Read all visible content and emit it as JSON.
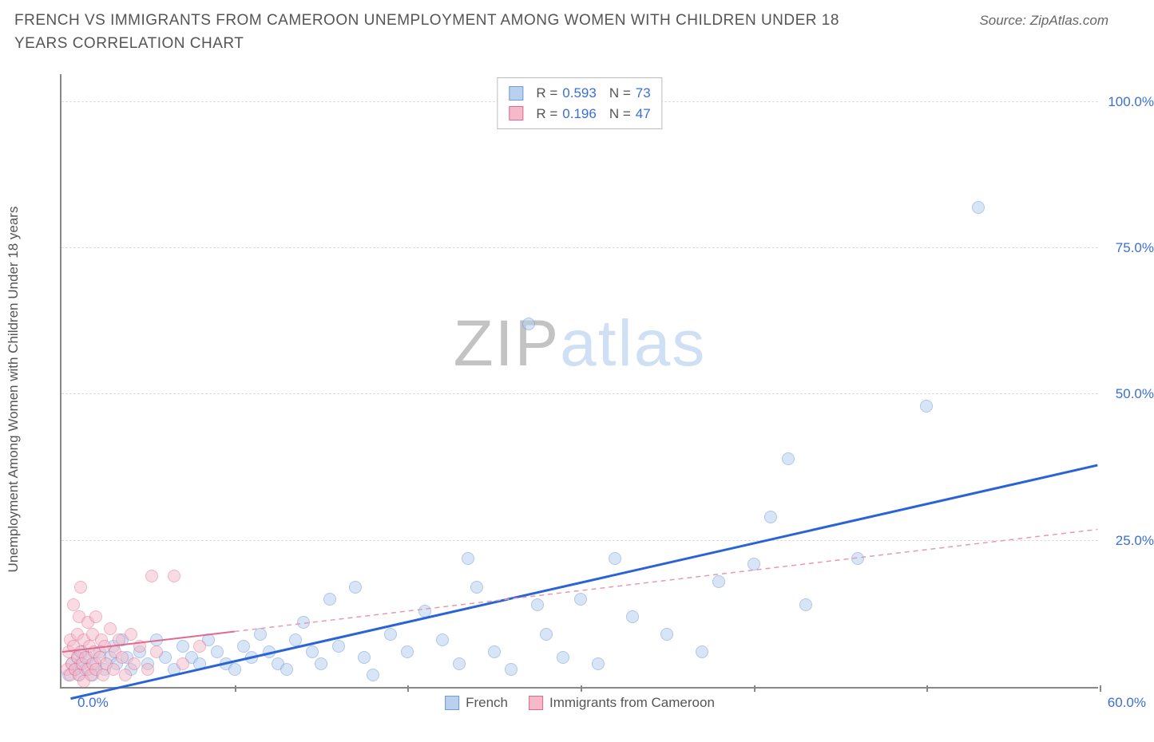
{
  "title": "FRENCH VS IMMIGRANTS FROM CAMEROON UNEMPLOYMENT AMONG WOMEN WITH CHILDREN UNDER 18 YEARS CORRELATION CHART",
  "source": "Source: ZipAtlas.com",
  "y_axis_label": "Unemployment Among Women with Children Under 18 years",
  "watermark": {
    "a": "ZIP",
    "b": "atlas"
  },
  "chart": {
    "type": "scatter",
    "background_color": "#ffffff",
    "grid_color": "#dddddd",
    "axis_color": "#888888",
    "tick_label_color": "#3a6fd8",
    "xlim": [
      0,
      60
    ],
    "ylim": [
      0,
      105
    ],
    "x_ticks": [
      0,
      10,
      20,
      30,
      40,
      50,
      60
    ],
    "y_ticks": [
      25,
      50,
      75,
      100
    ],
    "y_tick_labels": [
      "25.0%",
      "50.0%",
      "75.0%",
      "100.0%"
    ],
    "x_origin_label": "0.0%",
    "x_max_label": "60.0%",
    "marker_radius": 8,
    "marker_stroke_width": 1,
    "series": [
      {
        "name": "French",
        "fill": "#b9d0ef",
        "stroke": "#6f9bd8",
        "fill_opacity": 0.55,
        "R": "0.593",
        "N": "73",
        "trend": {
          "x1": 0.5,
          "y1": -2,
          "x2": 60,
          "y2": 38,
          "color": "#2a63d6",
          "width": 3,
          "dash": ""
        },
        "points": [
          [
            0.4,
            2
          ],
          [
            0.6,
            4
          ],
          [
            0.8,
            3
          ],
          [
            0.9,
            5
          ],
          [
            1.0,
            2
          ],
          [
            1.1,
            4
          ],
          [
            1.2,
            6
          ],
          [
            1.4,
            3
          ],
          [
            1.5,
            5
          ],
          [
            1.8,
            2
          ],
          [
            2.0,
            4
          ],
          [
            2.2,
            6
          ],
          [
            2.5,
            3
          ],
          [
            2.8,
            5
          ],
          [
            3.0,
            7
          ],
          [
            3.2,
            4
          ],
          [
            3.5,
            8
          ],
          [
            3.8,
            5
          ],
          [
            4.0,
            3
          ],
          [
            4.5,
            6
          ],
          [
            5.0,
            4
          ],
          [
            5.5,
            8
          ],
          [
            6.0,
            5
          ],
          [
            6.5,
            3
          ],
          [
            7.0,
            7
          ],
          [
            7.5,
            5
          ],
          [
            8.0,
            4
          ],
          [
            8.5,
            8
          ],
          [
            9.0,
            6
          ],
          [
            9.5,
            4
          ],
          [
            10,
            3
          ],
          [
            10.5,
            7
          ],
          [
            11,
            5
          ],
          [
            11.5,
            9
          ],
          [
            12,
            6
          ],
          [
            12.5,
            4
          ],
          [
            13,
            3
          ],
          [
            13.5,
            8
          ],
          [
            14,
            11
          ],
          [
            14.5,
            6
          ],
          [
            15,
            4
          ],
          [
            15.5,
            15
          ],
          [
            16,
            7
          ],
          [
            17,
            17
          ],
          [
            17.5,
            5
          ],
          [
            18,
            2
          ],
          [
            19,
            9
          ],
          [
            20,
            6
          ],
          [
            21,
            13
          ],
          [
            22,
            8
          ],
          [
            23,
            4
          ],
          [
            23.5,
            22
          ],
          [
            24,
            17
          ],
          [
            25,
            6
          ],
          [
            26,
            3
          ],
          [
            27,
            62
          ],
          [
            27.5,
            14
          ],
          [
            28,
            9
          ],
          [
            29,
            5
          ],
          [
            30,
            15
          ],
          [
            31,
            4
          ],
          [
            32,
            22
          ],
          [
            33,
            12
          ],
          [
            35,
            9
          ],
          [
            37,
            6
          ],
          [
            38,
            18
          ],
          [
            40,
            21
          ],
          [
            41,
            29
          ],
          [
            42,
            39
          ],
          [
            43,
            14
          ],
          [
            46,
            22
          ],
          [
            50,
            48
          ],
          [
            53,
            82
          ]
        ]
      },
      {
        "name": "Immigrants from Cameroon",
        "fill": "#f5b9ca",
        "stroke": "#e06a8d",
        "fill_opacity": 0.5,
        "R": "0.196",
        "N": "47",
        "trend": {
          "x1": 0,
          "y1": 6,
          "x2": 60,
          "y2": 27,
          "color": "#e69aad",
          "width": 1.5,
          "dash": "6,5"
        },
        "trend_solid_until_x": 10,
        "points": [
          [
            0.3,
            3
          ],
          [
            0.4,
            6
          ],
          [
            0.5,
            2
          ],
          [
            0.5,
            8
          ],
          [
            0.6,
            4
          ],
          [
            0.7,
            7
          ],
          [
            0.7,
            14
          ],
          [
            0.8,
            3
          ],
          [
            0.9,
            5
          ],
          [
            0.9,
            9
          ],
          [
            1.0,
            2
          ],
          [
            1.0,
            12
          ],
          [
            1.1,
            6
          ],
          [
            1.1,
            17
          ],
          [
            1.2,
            4
          ],
          [
            1.3,
            8
          ],
          [
            1.3,
            1
          ],
          [
            1.4,
            5
          ],
          [
            1.5,
            11
          ],
          [
            1.5,
            3
          ],
          [
            1.6,
            7
          ],
          [
            1.7,
            2
          ],
          [
            1.8,
            9
          ],
          [
            1.8,
            4
          ],
          [
            1.9,
            6
          ],
          [
            2.0,
            3
          ],
          [
            2.0,
            12
          ],
          [
            2.2,
            5
          ],
          [
            2.3,
            8
          ],
          [
            2.4,
            2
          ],
          [
            2.5,
            7
          ],
          [
            2.6,
            4
          ],
          [
            2.8,
            10
          ],
          [
            3.0,
            3
          ],
          [
            3.1,
            6
          ],
          [
            3.3,
            8
          ],
          [
            3.5,
            5
          ],
          [
            3.7,
            2
          ],
          [
            4.0,
            9
          ],
          [
            4.2,
            4
          ],
          [
            4.5,
            7
          ],
          [
            5.0,
            3
          ],
          [
            5.2,
            19
          ],
          [
            5.5,
            6
          ],
          [
            6.5,
            19
          ],
          [
            7.0,
            4
          ],
          [
            8.0,
            7
          ]
        ]
      }
    ],
    "legend_bottom": [
      "French",
      "Immigrants from Cameroon"
    ]
  }
}
